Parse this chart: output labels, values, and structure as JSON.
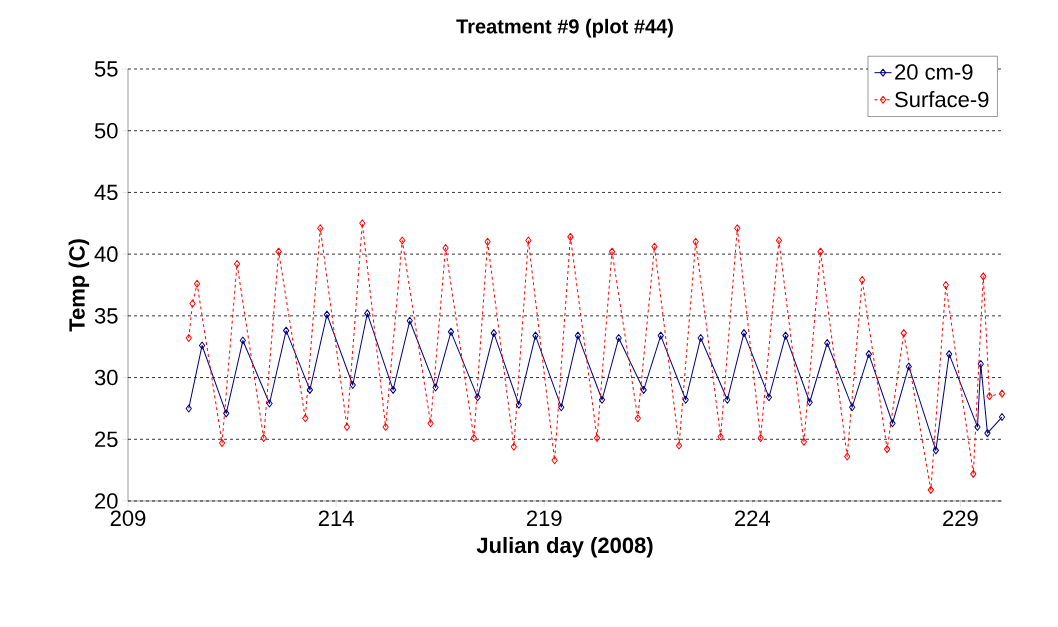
{
  "chart_data": {
    "type": "line",
    "title": "Treatment #9 (plot #44)",
    "xlabel": "Julian day (2008)",
    "ylabel": "Temp (C)",
    "xlim": [
      209,
      230
    ],
    "xticks": [
      209,
      214,
      219,
      224,
      229
    ],
    "ylim": [
      20,
      55
    ],
    "yticks": [
      20,
      25,
      30,
      35,
      40,
      45,
      50,
      55
    ],
    "grid": "y",
    "legend": "top right",
    "marker": "diamond",
    "series": [
      {
        "name": "20 cm-9",
        "color": "#000080",
        "line_style": "solid",
        "x": [
          210.46,
          210.78,
          211.36,
          211.76,
          212.4,
          212.8,
          213.37,
          213.78,
          214.4,
          214.75,
          215.37,
          215.77,
          216.39,
          216.76,
          217.4,
          217.79,
          218.39,
          218.79,
          219.41,
          219.81,
          220.39,
          220.79,
          221.39,
          221.8,
          222.4,
          222.76,
          223.4,
          223.8,
          224.4,
          224.8,
          225.38,
          225.8,
          226.4,
          226.8,
          227.37,
          227.76,
          228.41,
          228.73,
          229.41,
          229.49,
          229.65,
          230.0
        ],
        "values": [
          27.5,
          32.6,
          27.1,
          33.0,
          27.9,
          33.8,
          29.0,
          35.1,
          29.4,
          35.2,
          29.0,
          34.6,
          29.2,
          33.7,
          28.4,
          33.6,
          27.8,
          33.4,
          27.6,
          33.4,
          28.2,
          33.2,
          29.0,
          33.4,
          28.2,
          33.2,
          28.2,
          33.6,
          28.4,
          33.4,
          28.0,
          32.8,
          27.6,
          31.9,
          26.3,
          30.9,
          24.1,
          31.9,
          26.0,
          31.1,
          25.5,
          26.8
        ]
      },
      {
        "name": "Surface-9",
        "color": "#ff0000",
        "line_style": "dashed",
        "x": [
          210.46,
          210.55,
          210.66,
          211.26,
          211.62,
          212.26,
          212.62,
          213.26,
          213.62,
          214.26,
          214.63,
          215.19,
          215.59,
          216.27,
          216.63,
          217.31,
          217.64,
          218.27,
          218.62,
          219.25,
          219.63,
          220.27,
          220.63,
          221.25,
          221.65,
          222.24,
          222.64,
          223.24,
          223.64,
          224.2,
          224.64,
          225.24,
          225.64,
          226.28,
          226.64,
          227.24,
          227.64,
          228.29,
          228.65,
          229.31,
          229.55,
          229.7,
          230.0
        ],
        "values": [
          33.2,
          36.0,
          37.6,
          24.7,
          39.2,
          25.1,
          40.2,
          26.7,
          42.1,
          26.0,
          42.5,
          26.0,
          41.1,
          26.3,
          40.5,
          25.1,
          41.0,
          24.4,
          41.1,
          23.3,
          41.4,
          25.1,
          40.2,
          26.7,
          40.6,
          24.5,
          41.0,
          25.2,
          42.1,
          25.1,
          41.1,
          24.8,
          40.2,
          23.6,
          37.9,
          24.2,
          33.6,
          20.9,
          37.5,
          22.2,
          38.2,
          28.5,
          28.7
        ]
      }
    ]
  }
}
